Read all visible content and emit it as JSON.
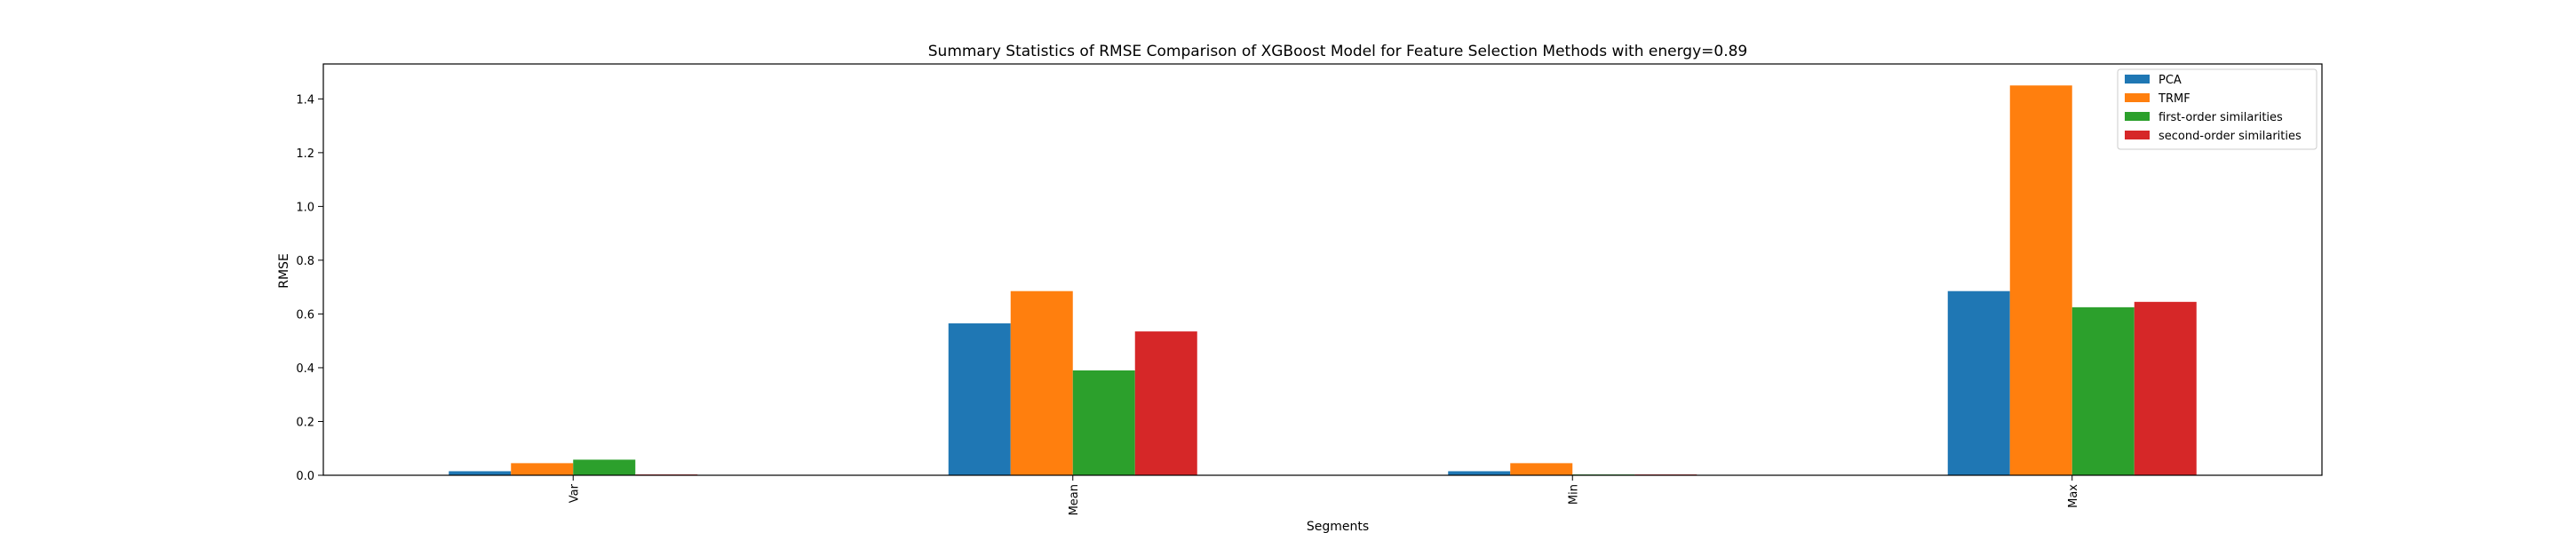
{
  "chart_data": {
    "type": "bar",
    "title": "Summary Statistics of RMSE Comparison of XGBoost Model for Feature Selection Methods with energy=0.89",
    "xlabel": "Segments",
    "ylabel": "RMSE",
    "categories": [
      "Var",
      "Mean",
      "Min",
      "Max"
    ],
    "series": [
      {
        "name": "PCA",
        "color": "#1f77b4",
        "values": [
          0.015,
          0.565,
          0.015,
          0.685
        ]
      },
      {
        "name": "TRMF",
        "color": "#ff7f0e",
        "values": [
          0.045,
          0.685,
          0.045,
          1.45
        ]
      },
      {
        "name": "first-order similarities",
        "color": "#2ca02c",
        "values": [
          0.058,
          0.39,
          0.003,
          0.625
        ]
      },
      {
        "name": "second-order similarities",
        "color": "#d62728",
        "values": [
          0.003,
          0.535,
          0.003,
          0.645
        ]
      }
    ],
    "ylim": [
      0,
      1.53
    ],
    "yticks": [
      "0.0",
      "0.2",
      "0.4",
      "0.6",
      "0.8",
      "1.0",
      "1.2",
      "1.4"
    ],
    "grid": false,
    "legend_position": "top-right"
  }
}
